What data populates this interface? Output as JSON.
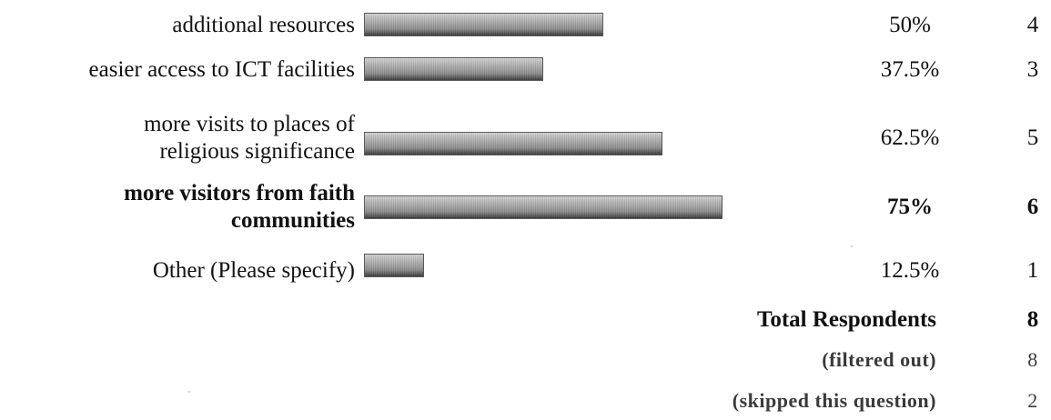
{
  "chart_data": {
    "type": "bar",
    "orientation": "horizontal",
    "categories": [
      "additional resources",
      "easier access to ICT facilities",
      "more visits to places of religious significance",
      "more visitors from faith communities",
      "Other (Please specify)"
    ],
    "category_lines": [
      [
        "additional resources"
      ],
      [
        "easier access to ICT facilities"
      ],
      [
        "more visits to places of",
        "religious significance"
      ],
      [
        "more visitors from faith",
        "communities"
      ],
      [
        "Other (Please specify)"
      ]
    ],
    "bold_rows": [
      false,
      false,
      false,
      true,
      false
    ],
    "values": [
      50,
      37.5,
      62.5,
      75,
      12.5
    ],
    "value_labels": [
      "50%",
      "37.5%",
      "62.5%",
      "75%",
      "12.5%"
    ],
    "counts": [
      "4",
      "3",
      "5",
      "6",
      "1"
    ],
    "xlim": [
      0,
      100
    ],
    "bar_color": "#8e8e8e",
    "summary": [
      {
        "label": "Total Respondents",
        "value": "8",
        "muted": false
      },
      {
        "label": "(filtered out)",
        "value": "8",
        "muted": true
      },
      {
        "label": "(skipped this question)",
        "value": "2",
        "muted": true
      }
    ]
  }
}
